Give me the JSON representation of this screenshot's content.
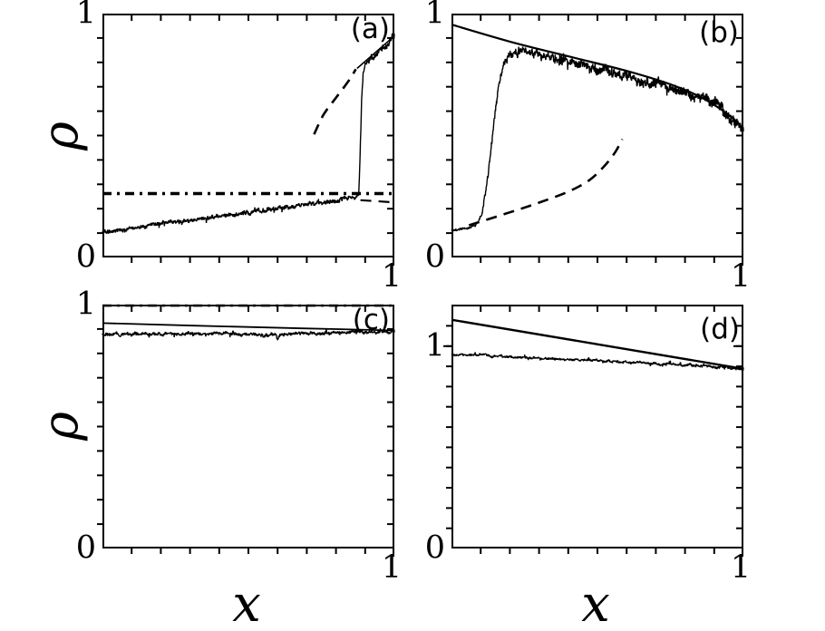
{
  "figure": {
    "background": "#ffffff"
  },
  "chart_data": {
    "type": "line",
    "title": "",
    "xlabel": "x",
    "ylabel": "ρ",
    "axis_color": "#000000",
    "grid": false,
    "legend": "none",
    "minor_tick_step": 0.1,
    "panels": [
      {
        "label": "(a)",
        "xlim": [
          0,
          1
        ],
        "ylim": [
          0,
          1
        ],
        "x_tick_labels": [
          {
            "text": "1",
            "value": 1
          }
        ],
        "y_tick_labels": [
          {
            "text": "1",
            "value": 1
          },
          {
            "text": "0",
            "value": 0
          }
        ],
        "series": [
          {
            "name": "dash-dot-horizontal-density-line",
            "style": "dashdot",
            "width": 3.4,
            "points": [
              [
                0,
                0.262
              ],
              [
                1,
                0.262
              ]
            ]
          },
          {
            "name": "dashed-unstable-branch",
            "style": "dashed",
            "width": 2.6,
            "points": [
              [
                0.725,
                0.505
              ],
              [
                0.757,
                0.585
              ],
              [
                0.8,
                0.655
              ],
              [
                0.842,
                0.722
              ],
              [
                0.868,
                0.772
              ]
            ]
          },
          {
            "name": "dashed-low-branch-tail",
            "style": "dashed",
            "width": 2.2,
            "points": [
              [
                0.884,
                0.235
              ],
              [
                0.985,
                0.227
              ]
            ]
          },
          {
            "name": "solid-high-density-branch",
            "style": "solid",
            "width": 1.6,
            "points": [
              [
                0.872,
                0.775
              ],
              [
                1,
                0.908
              ]
            ]
          },
          {
            "name": "noisy-simulation-curve",
            "style": "noisy",
            "width": 1.4,
            "noise_profile": [
              [
                0,
                0.007
              ],
              [
                0.85,
                0.008
              ],
              [
                0.878,
                0.003
              ],
              [
                0.9,
                0.009
              ],
              [
                1,
                0.011
              ]
            ],
            "points": [
              [
                0,
                0.103
              ],
              [
                0.2,
                0.138
              ],
              [
                0.4,
                0.168
              ],
              [
                0.6,
                0.203
              ],
              [
                0.8,
                0.235
              ],
              [
                0.865,
                0.252
              ],
              [
                0.878,
                0.26
              ],
              [
                0.882,
                0.4
              ],
              [
                0.888,
                0.65
              ],
              [
                0.893,
                0.76
              ],
              [
                0.9,
                0.79
              ],
              [
                0.92,
                0.815
              ],
              [
                0.95,
                0.845
              ],
              [
                0.97,
                0.872
              ],
              [
                1,
                0.915
              ]
            ]
          }
        ]
      },
      {
        "label": "(b)",
        "xlim": [
          0,
          1
        ],
        "ylim": [
          0,
          1
        ],
        "x_tick_labels": [
          {
            "text": "1",
            "value": 1
          }
        ],
        "y_tick_labels": [
          {
            "text": "1",
            "value": 1
          },
          {
            "text": "0",
            "value": 0
          }
        ],
        "series": [
          {
            "name": "solid-mean-field-curve",
            "style": "solid",
            "width": 2.2,
            "points": [
              [
                0,
                0.955
              ],
              [
                0.2,
                0.885
              ],
              [
                0.4,
                0.825
              ],
              [
                0.6,
                0.765
              ],
              [
                0.75,
                0.71
              ],
              [
                0.85,
                0.66
              ],
              [
                0.92,
                0.61
              ],
              [
                0.97,
                0.565
              ],
              [
                1,
                0.525
              ]
            ]
          },
          {
            "name": "dashed-unstable-branch",
            "style": "dashed",
            "width": 2.6,
            "points": [
              [
                0.06,
                0.132
              ],
              [
                0.2,
                0.185
              ],
              [
                0.3,
                0.225
              ],
              [
                0.4,
                0.27
              ],
              [
                0.47,
                0.315
              ],
              [
                0.52,
                0.37
              ],
              [
                0.56,
                0.43
              ],
              [
                0.585,
                0.485
              ]
            ]
          },
          {
            "name": "noisy-simulation-curve",
            "style": "noisy",
            "width": 1.4,
            "noise_profile": [
              [
                0,
                0.004
              ],
              [
                0.09,
                0.006
              ],
              [
                0.17,
                0.013
              ],
              [
                0.3,
                0.015
              ],
              [
                0.6,
                0.016
              ],
              [
                0.85,
                0.018
              ],
              [
                1,
                0.02
              ]
            ],
            "points": [
              [
                0,
                0.115
              ],
              [
                0.05,
                0.12
              ],
              [
                0.085,
                0.135
              ],
              [
                0.105,
                0.18
              ],
              [
                0.125,
                0.33
              ],
              [
                0.145,
                0.55
              ],
              [
                0.16,
                0.7
              ],
              [
                0.175,
                0.79
              ],
              [
                0.2,
                0.845
              ],
              [
                0.24,
                0.85
              ],
              [
                0.3,
                0.835
              ],
              [
                0.4,
                0.805
              ],
              [
                0.5,
                0.775
              ],
              [
                0.6,
                0.745
              ],
              [
                0.7,
                0.715
              ],
              [
                0.8,
                0.675
              ],
              [
                0.88,
                0.635
              ],
              [
                0.93,
                0.6
              ],
              [
                0.97,
                0.56
              ],
              [
                1,
                0.52
              ]
            ]
          }
        ]
      },
      {
        "label": "(c)",
        "xlim": [
          0,
          1
        ],
        "ylim": [
          0,
          1
        ],
        "x_tick_labels": [
          {
            "text": "1",
            "value": 1
          }
        ],
        "y_tick_labels": [
          {
            "text": "1",
            "value": 1
          },
          {
            "text": "0",
            "value": 0
          }
        ],
        "series": [
          {
            "name": "dash-dot-top-density-line",
            "style": "dashdot",
            "width": 2.6,
            "points": [
              [
                0,
                0.996
              ],
              [
                1,
                0.996
              ]
            ]
          },
          {
            "name": "solid-mean-field-line",
            "style": "solid",
            "width": 1.8,
            "points": [
              [
                0,
                0.924
              ],
              [
                0.5,
                0.908
              ],
              [
                1,
                0.894
              ]
            ]
          },
          {
            "name": "noisy-simulation-curve",
            "style": "noisy",
            "width": 1.4,
            "noise_profile": [
              [
                0,
                0.006
              ],
              [
                1,
                0.006
              ]
            ],
            "points": [
              [
                0,
                0.878
              ],
              [
                0.3,
                0.879
              ],
              [
                0.593,
                0.879
              ],
              [
                0.6,
                0.852
              ],
              [
                0.607,
                0.879
              ],
              [
                0.9,
                0.887
              ],
              [
                1,
                0.891
              ]
            ]
          }
        ]
      },
      {
        "label": "(d)",
        "xlim": [
          0,
          1
        ],
        "ylim": [
          0,
          1.205
        ],
        "x_tick_labels": [
          {
            "text": "1",
            "value": 1
          }
        ],
        "y_tick_labels": [
          {
            "text": "1",
            "value": 1
          },
          {
            "text": "0",
            "value": 0
          }
        ],
        "series": [
          {
            "name": "solid-mean-field-line",
            "style": "solid",
            "width": 2.4,
            "points": [
              [
                0,
                1.13
              ],
              [
                1,
                0.888
              ]
            ]
          },
          {
            "name": "noisy-simulation-curve",
            "style": "noisy",
            "width": 1.4,
            "noise_profile": [
              [
                0,
                0.005
              ],
              [
                1,
                0.006
              ]
            ],
            "points": [
              [
                0,
                0.958
              ],
              [
                0.25,
                0.944
              ],
              [
                0.5,
                0.928
              ],
              [
                0.75,
                0.91
              ],
              [
                0.9,
                0.897
              ],
              [
                1,
                0.89
              ]
            ]
          }
        ]
      }
    ]
  }
}
